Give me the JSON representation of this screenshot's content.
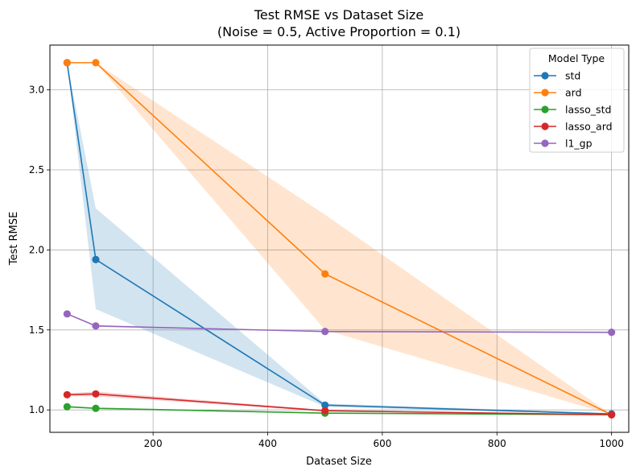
{
  "chart_data": {
    "type": "line",
    "title": "Test RMSE vs Dataset Size",
    "subtitle": "(Noise = 0.5, Active Proportion = 0.1)",
    "xlabel": "Dataset Size",
    "ylabel": "Test RMSE",
    "xlim": [
      20,
      1030
    ],
    "ylim": [
      0.86,
      3.28
    ],
    "xticks": [
      200,
      400,
      600,
      800,
      1000
    ],
    "yticks": [
      1.0,
      1.5,
      2.0,
      2.5,
      3.0
    ],
    "xtick_labels": [
      "200",
      "400",
      "600",
      "800",
      "1000"
    ],
    "ytick_labels": [
      "1.0",
      "1.5",
      "2.0",
      "2.5",
      "3.0"
    ],
    "grid": true,
    "legend": {
      "title": "Model Type",
      "placement": "top-right"
    },
    "x": [
      50,
      100,
      500,
      1000
    ],
    "series": [
      {
        "name": "std",
        "color": "#1f77b4",
        "values": [
          3.17,
          1.94,
          1.03,
          0.975
        ],
        "band_low": [
          3.17,
          1.63,
          1.02,
          0.97
        ],
        "band_high": [
          3.17,
          2.26,
          1.04,
          0.98
        ]
      },
      {
        "name": "ard",
        "color": "#ff7f0e",
        "values": [
          3.17,
          3.17,
          1.85,
          0.97
        ],
        "band_low": [
          3.17,
          3.17,
          1.5,
          0.97
        ],
        "band_high": [
          3.17,
          3.17,
          2.22,
          0.97
        ]
      },
      {
        "name": "lasso_std",
        "color": "#2ca02c",
        "values": [
          1.02,
          1.01,
          0.98,
          0.97
        ],
        "band_low": [
          1.015,
          1.005,
          0.978,
          0.968
        ],
        "band_high": [
          1.025,
          1.015,
          0.982,
          0.972
        ]
      },
      {
        "name": "lasso_ard",
        "color": "#d62728",
        "values": [
          1.095,
          1.1,
          0.995,
          0.97
        ],
        "band_low": [
          1.085,
          1.085,
          0.99,
          0.968
        ],
        "band_high": [
          1.105,
          1.115,
          1.0,
          0.972
        ]
      },
      {
        "name": "l1_gp",
        "color": "#9467bd",
        "values": [
          1.6,
          1.525,
          1.49,
          1.485
        ],
        "band_low": [
          1.6,
          1.52,
          1.488,
          1.483
        ],
        "band_high": [
          1.6,
          1.53,
          1.492,
          1.487
        ]
      }
    ]
  }
}
